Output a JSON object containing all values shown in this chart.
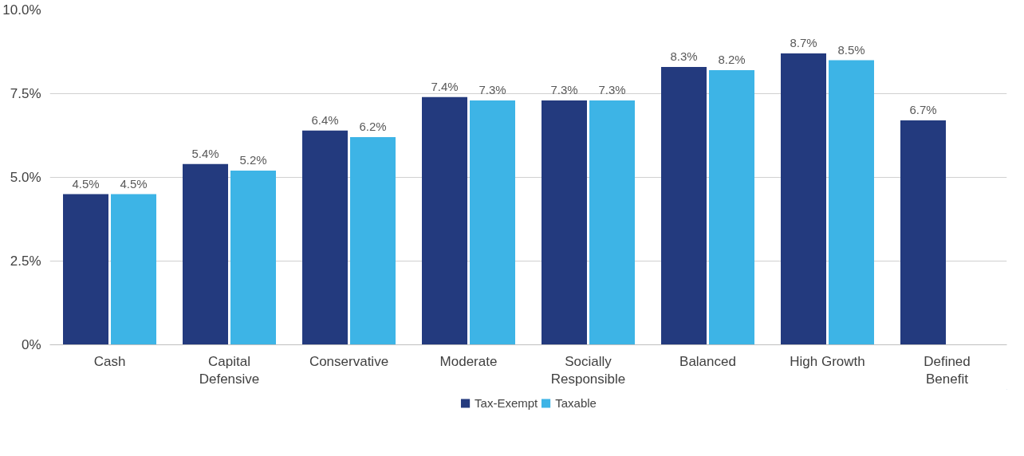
{
  "chart_data": {
    "type": "bar",
    "categories": [
      "Cash",
      "Capital Defensive",
      "Conservative",
      "Moderate",
      "Socially Responsible",
      "Balanced",
      "High Growth",
      "Defined Benefit"
    ],
    "series": [
      {
        "name": "Tax-Exempt",
        "color": "#233a7e",
        "values": [
          4.5,
          5.4,
          6.4,
          7.4,
          7.3,
          8.3,
          8.7,
          6.7
        ],
        "value_labels": [
          "4.5%",
          "5.4%",
          "6.4%",
          "7.4%",
          "7.3%",
          "8.3%",
          "8.7%",
          "6.7%"
        ]
      },
      {
        "name": "Taxable",
        "color": "#3db4e6",
        "values": [
          4.5,
          5.2,
          6.2,
          7.3,
          7.3,
          8.2,
          8.5,
          null
        ],
        "value_labels": [
          "4.5%",
          "5.2%",
          "6.2%",
          "7.3%",
          "7.3%",
          "8.2%",
          "8.5%",
          null
        ]
      }
    ],
    "ylim": [
      0,
      10
    ],
    "yticks": [
      {
        "value": 0,
        "label": "0%"
      },
      {
        "value": 2.5,
        "label": "2.5%"
      },
      {
        "value": 5,
        "label": "5.0%"
      },
      {
        "value": 7.5,
        "label": "7.5%"
      },
      {
        "value": 10,
        "label": "10.0%"
      }
    ],
    "grid": "y",
    "legend": "bottom"
  }
}
